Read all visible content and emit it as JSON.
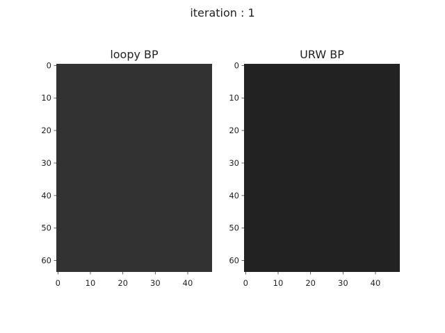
{
  "figure": {
    "suptitle": "iteration : 1"
  },
  "chart_data": [
    {
      "type": "heatmap",
      "title": "loopy BP",
      "image_rows": 64,
      "image_cols": 48,
      "fill_value": "uniform",
      "fill_color": "#323232",
      "x_ticks": [
        0,
        10,
        20,
        30,
        40
      ],
      "y_ticks": [
        0,
        10,
        20,
        30,
        40,
        50,
        60
      ],
      "xlim": [
        -0.5,
        47.5
      ],
      "ylim": [
        63.5,
        -0.5
      ],
      "grid": false
    },
    {
      "type": "heatmap",
      "title": "URW BP",
      "image_rows": 64,
      "image_cols": 48,
      "fill_value": "uniform",
      "fill_color": "#222222",
      "x_ticks": [
        0,
        10,
        20,
        30,
        40
      ],
      "y_ticks": [
        0,
        10,
        20,
        30,
        40,
        50,
        60
      ],
      "xlim": [
        -0.5,
        47.5
      ],
      "ylim": [
        63.5,
        -0.5
      ],
      "grid": false
    }
  ]
}
